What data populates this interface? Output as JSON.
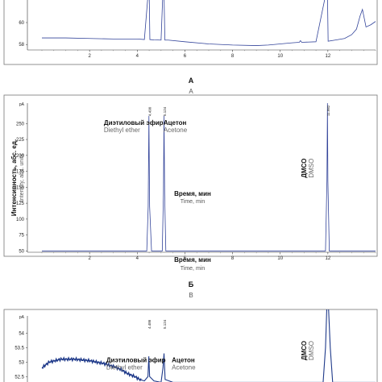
{
  "colors": {
    "trace": "#33449a",
    "trace_noisy": "#1f3a8a",
    "axis": "#333333",
    "frame": "#777777"
  },
  "chart_data": [
    {
      "type": "line",
      "panel_label_ru": "А",
      "panel_label_en": "A",
      "xlabel_ru": "Время, мин",
      "xlabel_en": "Time, min",
      "ylabel_ru": "",
      "ylabel_en": "",
      "xlim": [
        0,
        14
      ],
      "ylim": [
        57.5,
        62.5
      ],
      "x_ticks": [
        2,
        4,
        6,
        8,
        10,
        12
      ],
      "y_ticks": [
        {
          "value": 58,
          "label": "58"
        },
        {
          "value": 60,
          "label": "60"
        }
      ],
      "y_unit_label": "",
      "series": [
        {
          "x": [
            0,
            1,
            2,
            3,
            4,
            4.3,
            4.47,
            4.5,
            4.53,
            4.7,
            5.0,
            5.08,
            5.12,
            5.16,
            5.3,
            6,
            7,
            8,
            9,
            9.5,
            10,
            10.5,
            10.8,
            10.85,
            10.9,
            11.5,
            11.95,
            11.98,
            12.01,
            12.3,
            12.7,
            13.0,
            13.2,
            13.35,
            13.45,
            13.6,
            13.8,
            14
          ],
          "y": [
            58.6,
            58.6,
            58.55,
            58.5,
            58.5,
            58.45,
            63,
            63,
            58.45,
            58.42,
            58.4,
            63,
            63,
            58.4,
            58.4,
            58.25,
            58.05,
            57.95,
            57.9,
            57.95,
            58.05,
            58.15,
            58.2,
            58.35,
            58.2,
            58.25,
            63,
            63,
            58.3,
            58.4,
            58.55,
            58.9,
            59.4,
            60.6,
            61.2,
            59.6,
            59.8,
            60.1
          ]
        }
      ],
      "peak_labels": []
    },
    {
      "type": "line",
      "panel_label_ru": "Б",
      "panel_label_en": "B",
      "xlabel_ru": "Время, мин",
      "xlabel_en": "Time, min",
      "ylabel_ru": "Интенсивность, абс. ед.",
      "ylabel_en": "Intensity, abs. units",
      "xlim": [
        0,
        14
      ],
      "ylim": [
        48,
        282
      ],
      "x_ticks": [
        2,
        4,
        6,
        8,
        10,
        12
      ],
      "y_ticks": [
        {
          "value": 50,
          "label": "50"
        },
        {
          "value": 75,
          "label": "75"
        },
        {
          "value": 100,
          "label": "100"
        },
        {
          "value": 125,
          "label": "125"
        },
        {
          "value": 150,
          "label": "150"
        },
        {
          "value": 175,
          "label": "175"
        },
        {
          "value": 200,
          "label": "200"
        },
        {
          "value": 225,
          "label": "225"
        },
        {
          "value": 250,
          "label": "250"
        }
      ],
      "y_unit_label": "pA",
      "series": [
        {
          "x": [
            0,
            4.4,
            4.46,
            4.49,
            4.52,
            4.6,
            5.05,
            5.1,
            5.124,
            5.15,
            5.2,
            11.9,
            11.96,
            11.982,
            12.0,
            12.06,
            14
          ],
          "y": [
            50,
            50,
            120,
            262,
            120,
            50,
            50,
            140,
            262,
            140,
            50,
            50,
            160,
            282,
            160,
            50,
            50
          ]
        }
      ],
      "peak_labels": [
        {
          "rt": "4.490",
          "x": 4.49,
          "name_ru": "Диэтиловый эфир",
          "name_en": "Diethyl ether",
          "label_at": [
            2.6,
            248
          ],
          "anchor": "start"
        },
        {
          "rt": "5.124",
          "x": 5.124,
          "name_ru": "Ацетон",
          "name_en": "Acetone",
          "label_at": [
            5.1,
            248
          ],
          "anchor": "start"
        },
        {
          "rt": "11.982",
          "x": 11.982,
          "name_ru": "ДМСО",
          "name_en": "DMSO",
          "label_at": [
            11.1,
            180
          ],
          "anchor": "vertical"
        }
      ]
    },
    {
      "type": "line",
      "panel_label_ru": "",
      "panel_label_en": "",
      "xlabel_ru": "",
      "xlabel_en": "",
      "ylabel_ru": "",
      "ylabel_en": "",
      "xlim": [
        0,
        14
      ],
      "ylim": [
        52.2,
        54.6
      ],
      "x_ticks": [],
      "y_ticks": [
        {
          "value": 54,
          "label": "54"
        },
        {
          "value": 53.5,
          "label": "53.5"
        },
        {
          "value": 53,
          "label": "53"
        },
        {
          "value": 52.5,
          "label": "52.5"
        }
      ],
      "y_unit_label": "pA",
      "series": [
        {
          "x": [
            0,
            0.3,
            0.8,
            1.4,
            2.0,
            2.6,
            3.0,
            3.3,
            3.6,
            3.9,
            4.1,
            4.3,
            4.45,
            4.486,
            4.52,
            4.7,
            5.0,
            5.08,
            5.124,
            5.17,
            5.5,
            11.8,
            11.9,
            11.96,
            12.02,
            12.1,
            12.2,
            14
          ],
          "y": [
            52.8,
            53.0,
            53.1,
            53.1,
            53.05,
            52.95,
            52.85,
            52.75,
            52.6,
            52.5,
            52.4,
            52.35,
            52.5,
            53.2,
            52.5,
            52.35,
            52.3,
            52.8,
            53.3,
            52.4,
            52.3,
            52.3,
            53.5,
            55,
            55,
            53.5,
            52.3,
            52.3
          ]
        }
      ],
      "peak_labels": [
        {
          "rt": "4.486",
          "x": 4.486,
          "name_ru": "Диэтиловый эфир",
          "name_en": "Diethyl ether",
          "label_at": [
            2.7,
            53.0
          ],
          "anchor": "start"
        },
        {
          "rt": "5.124",
          "x": 5.124,
          "name_ru": "Ацетон",
          "name_en": "Acetone",
          "label_at": [
            5.45,
            53.0
          ],
          "anchor": "start"
        },
        {
          "rt": "",
          "x": 11.98,
          "name_ru": "ДМСО",
          "name_en": "DMSO",
          "label_at": [
            11.1,
            53.4
          ],
          "anchor": "vertical"
        }
      ]
    }
  ]
}
